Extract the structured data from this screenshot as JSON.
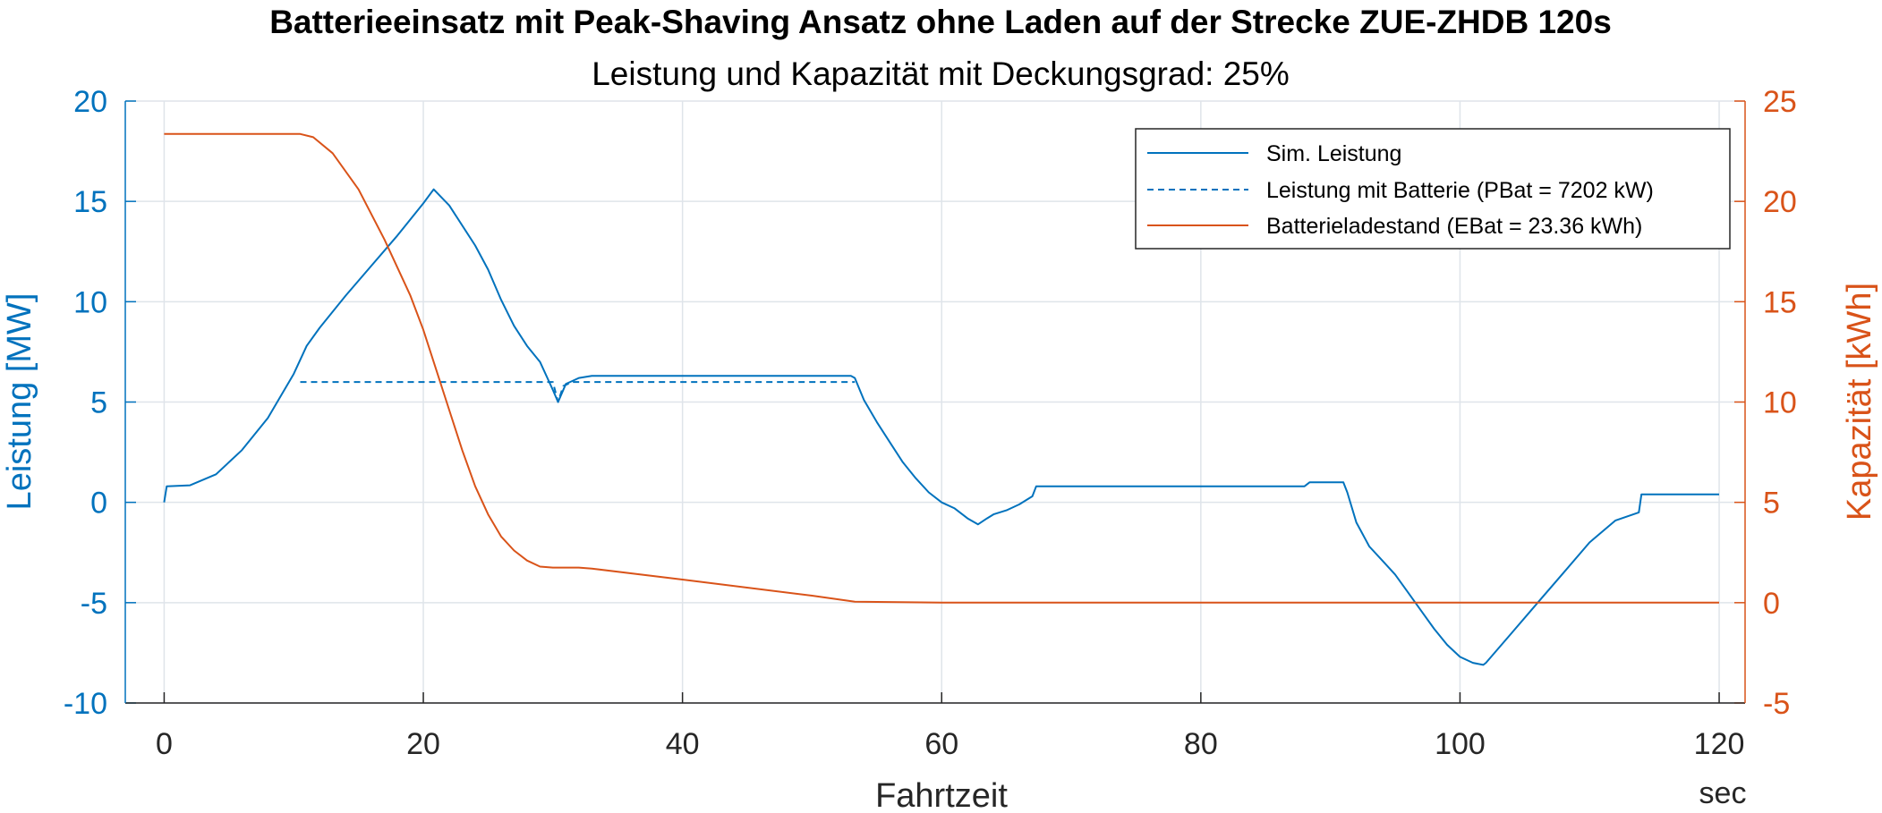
{
  "colors": {
    "left_axis": "#0072BD",
    "right_axis": "#D95319",
    "grid": "#dfe4ea",
    "axis_box": "#262626"
  },
  "chart_data": {
    "type": "line",
    "title": "Batterieeinsatz mit Peak-Shaving Ansatz ohne Laden auf der Strecke ZUE-ZHDB 120s",
    "subtitle": "Leistung und Kapazität mit Deckungsgrad: 25%",
    "xlabel": "Fahrtzeit",
    "xunit": "sec",
    "ylabel_left": "Leistung [MW]",
    "ylabel_right": "Kapazität [kWh]",
    "xlim": [
      -3,
      122
    ],
    "ylim_left": [
      -10,
      20
    ],
    "ylim_right": [
      -5,
      25
    ],
    "xticks": [
      "0",
      "20",
      "40",
      "60",
      "80",
      "100",
      "120"
    ],
    "yticks_left": [
      "-10",
      "-5",
      "0",
      "5",
      "10",
      "15",
      "20"
    ],
    "yticks_right": [
      "-5",
      "0",
      "5",
      "10",
      "15",
      "20",
      "25"
    ],
    "grid": true,
    "legend_position": "top-right",
    "series": [
      {
        "name": "Sim. Leistung",
        "axis": "left",
        "color": "#0072BD",
        "style": "solid",
        "x": [
          0,
          0.2,
          2,
          4,
          6,
          8,
          10,
          11,
          12,
          14,
          16,
          18,
          20,
          20.8,
          22,
          24,
          25,
          26,
          27,
          28,
          29,
          30,
          30.4,
          31,
          32,
          33,
          40,
          50,
          53,
          53.3,
          54,
          55,
          56,
          57,
          58,
          59,
          60,
          61,
          62,
          62.8,
          63.5,
          64,
          65,
          66,
          67,
          67.3,
          70,
          80,
          88,
          88.4,
          91,
          91.3,
          92,
          93,
          94,
          95,
          96,
          97,
          98,
          99,
          100,
          101,
          101.8,
          102,
          104,
          106,
          108,
          110,
          112,
          113.8,
          114,
          116,
          118,
          120
        ],
        "y": [
          0,
          0.8,
          0.85,
          1.4,
          2.6,
          4.2,
          6.4,
          7.8,
          8.7,
          10.3,
          11.8,
          13.3,
          14.9,
          15.6,
          14.8,
          12.8,
          11.6,
          10.1,
          8.8,
          7.8,
          7.0,
          5.6,
          5.0,
          5.9,
          6.2,
          6.3,
          6.3,
          6.3,
          6.3,
          6.2,
          5.1,
          4.0,
          3.0,
          2.0,
          1.2,
          0.5,
          0.0,
          -0.3,
          -0.8,
          -1.1,
          -0.8,
          -0.6,
          -0.4,
          -0.1,
          0.3,
          0.8,
          0.8,
          0.8,
          0.8,
          1.0,
          1.0,
          0.5,
          -1.0,
          -2.2,
          -2.9,
          -3.6,
          -4.5,
          -5.4,
          -6.3,
          -7.1,
          -7.7,
          -8.0,
          -8.1,
          -8.0,
          -6.5,
          -5.0,
          -3.5,
          -2.0,
          -0.9,
          -0.5,
          0.4,
          0.4,
          0.4,
          0.4
        ]
      },
      {
        "name": "Leistung mit Batterie (PBat = 7202 kW)",
        "axis": "left",
        "color": "#0072BD",
        "style": "dashed",
        "x": [
          10.5,
          30,
          30.4,
          30.8,
          31.5,
          53.3
        ],
        "y": [
          6.0,
          6.0,
          5.0,
          5.8,
          6.0,
          6.0
        ]
      },
      {
        "name": "Batterieladestand (EBat = 23.36 kWh)",
        "axis": "right",
        "color": "#D95319",
        "style": "solid",
        "x": [
          0,
          10.5,
          11.5,
          13,
          15,
          17,
          19,
          20,
          21,
          22,
          23,
          24,
          25,
          26,
          27,
          28,
          29,
          30,
          31,
          32,
          33,
          40,
          50,
          53.3,
          60,
          80,
          100,
          120
        ],
        "y": [
          23.36,
          23.36,
          23.2,
          22.4,
          20.6,
          18.1,
          15.3,
          13.6,
          11.6,
          9.6,
          7.6,
          5.8,
          4.4,
          3.3,
          2.6,
          2.1,
          1.8,
          1.75,
          1.75,
          1.75,
          1.7,
          1.15,
          0.35,
          0.05,
          0,
          0,
          0,
          0
        ]
      }
    ]
  }
}
